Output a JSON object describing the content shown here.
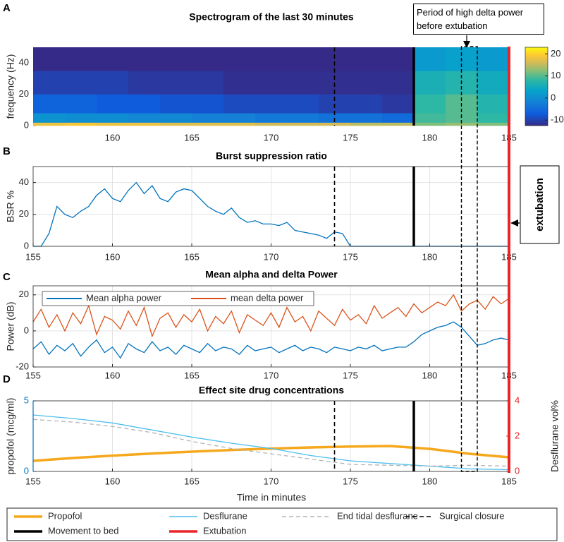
{
  "chart_data": [
    {
      "panel": "A",
      "type": "heatmap",
      "title": "Spectrogram of the last 30 minutes",
      "y_label": "frequency (Hz)",
      "x_edges": [
        155,
        157,
        159,
        161,
        163,
        165,
        167,
        169,
        171,
        173,
        175,
        177,
        179,
        181,
        183,
        185
      ],
      "y_edges": [
        0,
        2,
        8,
        20,
        35,
        50
      ],
      "z": [
        [
          18,
          1,
          -6,
          -10,
          -13
        ],
        [
          19,
          0,
          -6,
          -10,
          -13
        ],
        [
          18,
          0,
          -7,
          -10,
          -13
        ],
        [
          18,
          -1,
          -7,
          -11,
          -13
        ],
        [
          17,
          -1,
          -8,
          -11,
          -13
        ],
        [
          17,
          -2,
          -8,
          -11,
          -13
        ],
        [
          17,
          -2,
          -9,
          -12,
          -13
        ],
        [
          16,
          -3,
          -9,
          -12,
          -13
        ],
        [
          16,
          -3,
          -9,
          -12,
          -13
        ],
        [
          16,
          -4,
          -10,
          -12,
          -13
        ],
        [
          15,
          -4,
          -10,
          -12,
          -13
        ],
        [
          15,
          -5,
          -11,
          -12,
          -13
        ],
        [
          12,
          9,
          8,
          6,
          2
        ],
        [
          13,
          10,
          10,
          7,
          3
        ],
        [
          12,
          8,
          7,
          5,
          2
        ]
      ],
      "xlim": [
        155,
        185
      ],
      "ylim": [
        0,
        50
      ],
      "xticks": [
        160,
        165,
        170,
        175,
        180,
        185
      ],
      "yticks": [
        0,
        20,
        40
      ],
      "colorbar": {
        "lim": [
          -12.5,
          23
        ],
        "ticks": [
          -10,
          0,
          10,
          20
        ]
      }
    },
    {
      "panel": "B",
      "type": "line",
      "title": "Burst suppression ratio",
      "y_label": "BSR %",
      "x": [
        155,
        155.5,
        156,
        156.5,
        157,
        157.5,
        158,
        158.5,
        159,
        159.5,
        160,
        160.5,
        161,
        161.5,
        162,
        162.5,
        163,
        163.5,
        164,
        164.5,
        165,
        165.5,
        166,
        166.5,
        167,
        167.5,
        168,
        168.5,
        169,
        169.5,
        170,
        170.5,
        171,
        171.5,
        172,
        172.5,
        173,
        173.5,
        174,
        174.5,
        175,
        175.5,
        176,
        176.5,
        177,
        177.5,
        178,
        178.5,
        179,
        179.5,
        180,
        180.5,
        181,
        181.5,
        182,
        182.5,
        183,
        183.5,
        184,
        184.5,
        185
      ],
      "series": [
        {
          "color": "#0072bd",
          "values": [
            0,
            0,
            8,
            25,
            20,
            18,
            22,
            25,
            32,
            36,
            30,
            28,
            35,
            40,
            33,
            38,
            30,
            28,
            34,
            36,
            35,
            30,
            25,
            22,
            20,
            24,
            18,
            15,
            16,
            14,
            14,
            13,
            15,
            10,
            9,
            8,
            7,
            5,
            9,
            8,
            0,
            0,
            0,
            0,
            0,
            0,
            0,
            0,
            0,
            0,
            0,
            0,
            0,
            0,
            0,
            0,
            0,
            0,
            0,
            0,
            0
          ]
        }
      ],
      "xlim": [
        155,
        185
      ],
      "ylim": [
        0,
        50
      ],
      "xticks": [
        155,
        160,
        165,
        170,
        175,
        180,
        185
      ],
      "yticks": [
        0,
        20,
        40
      ],
      "grid": true
    },
    {
      "panel": "C",
      "type": "line",
      "title": "Mean alpha and delta Power",
      "y_label": "Power (dB)",
      "x": [
        155,
        155.5,
        156,
        156.5,
        157,
        157.5,
        158,
        158.5,
        159,
        159.5,
        160,
        160.5,
        161,
        161.5,
        162,
        162.5,
        163,
        163.5,
        164,
        164.5,
        165,
        165.5,
        166,
        166.5,
        167,
        167.5,
        168,
        168.5,
        169,
        169.5,
        170,
        170.5,
        171,
        171.5,
        172,
        172.5,
        173,
        173.5,
        174,
        174.5,
        175,
        175.5,
        176,
        176.5,
        177,
        177.5,
        178,
        178.5,
        179,
        179.5,
        180,
        180.5,
        181,
        181.5,
        182,
        182.5,
        183,
        183.5,
        184,
        184.5,
        185
      ],
      "series": [
        {
          "name": "Mean alpha power",
          "color": "#0072bd",
          "values": [
            -10,
            -6,
            -13,
            -8,
            -11,
            -7,
            -14,
            -9,
            -5,
            -12,
            -9,
            -15,
            -7,
            -10,
            -12,
            -6,
            -11,
            -9,
            -13,
            -8,
            -10,
            -12,
            -7,
            -11,
            -9,
            -10,
            -13,
            -8,
            -11,
            -10,
            -9,
            -12,
            -10,
            -8,
            -11,
            -9,
            -10,
            -12,
            -9,
            -10,
            -11,
            -9,
            -10,
            -8,
            -11,
            -10,
            -9,
            -9,
            -6,
            -2,
            0,
            2,
            3,
            5,
            2,
            -3,
            -8,
            -7,
            -5,
            -4,
            -5
          ]
        },
        {
          "name": "mean delta power",
          "color": "#d95319",
          "values": [
            5,
            12,
            2,
            9,
            0,
            10,
            4,
            14,
            -2,
            8,
            6,
            1,
            11,
            3,
            13,
            -3,
            7,
            10,
            2,
            9,
            5,
            12,
            0,
            8,
            4,
            11,
            -1,
            9,
            6,
            3,
            10,
            2,
            13,
            5,
            8,
            0,
            11,
            7,
            3,
            12,
            6,
            9,
            4,
            14,
            7,
            10,
            13,
            8,
            15,
            10,
            13,
            16,
            14,
            20,
            11,
            15,
            17,
            12,
            19,
            15,
            18
          ]
        }
      ],
      "xlim": [
        155,
        185
      ],
      "ylim": [
        -20,
        25
      ],
      "xticks": [
        155,
        160,
        165,
        170,
        175,
        180,
        185
      ],
      "yticks": [
        -20,
        0,
        20
      ],
      "grid": true,
      "legend": "upper left"
    },
    {
      "panel": "D",
      "type": "line",
      "title": "Effect site drug concentrations",
      "x_label": "Time in minutes",
      "y_label": "propofol (mcg/ml)",
      "y2_label": "Desflurane vol%",
      "x": [
        155,
        157.5,
        160,
        162.5,
        165,
        167.5,
        170,
        172.5,
        175,
        177.5,
        180,
        182.5,
        185
      ],
      "series": [
        {
          "name": "Propofol",
          "color": "#f5a81c",
          "linewidth": 3.5,
          "values": [
            0.75,
            0.95,
            1.12,
            1.27,
            1.4,
            1.52,
            1.62,
            1.7,
            1.76,
            1.8,
            1.6,
            1.25,
            1.0
          ]
        },
        {
          "name": "Desflurane",
          "color": "#4dbeee",
          "axis": "y2",
          "values": [
            3.2,
            3.0,
            2.75,
            2.35,
            1.95,
            1.6,
            1.3,
            0.9,
            0.6,
            0.45,
            0.3,
            0.15,
            0.1
          ]
        },
        {
          "name": "End tidal desflurane",
          "color": "#b4b4b4",
          "axis": "y2",
          "dashed": true,
          "values": [
            2.95,
            2.8,
            2.55,
            2.2,
            1.7,
            1.3,
            1.0,
            0.7,
            0.4,
            0.35,
            0.3,
            0.35,
            0.3
          ]
        }
      ],
      "xlim": [
        155,
        185
      ],
      "ylim": [
        0,
        5
      ],
      "y2lim": [
        0,
        4
      ],
      "xticks": [
        155,
        160,
        165,
        170,
        175,
        180,
        185
      ],
      "yticks": [
        0,
        5
      ],
      "y2ticks": [
        0,
        2,
        4
      ],
      "y_color": "#0072bd",
      "y2_color": "#e8262a",
      "grid": true
    }
  ],
  "events": [
    {
      "name": "Surgical closure",
      "x": 174,
      "color": "#000000",
      "dashed": true
    },
    {
      "name": "Movement to bed",
      "x": 179,
      "color": "#000000"
    },
    {
      "name": "Extubation",
      "x": 185,
      "color": "#e8262a"
    }
  ],
  "highlight": {
    "label": "Period of high delta power before extubation",
    "x": [
      182,
      183
    ]
  },
  "extubation_label": "extubation"
}
